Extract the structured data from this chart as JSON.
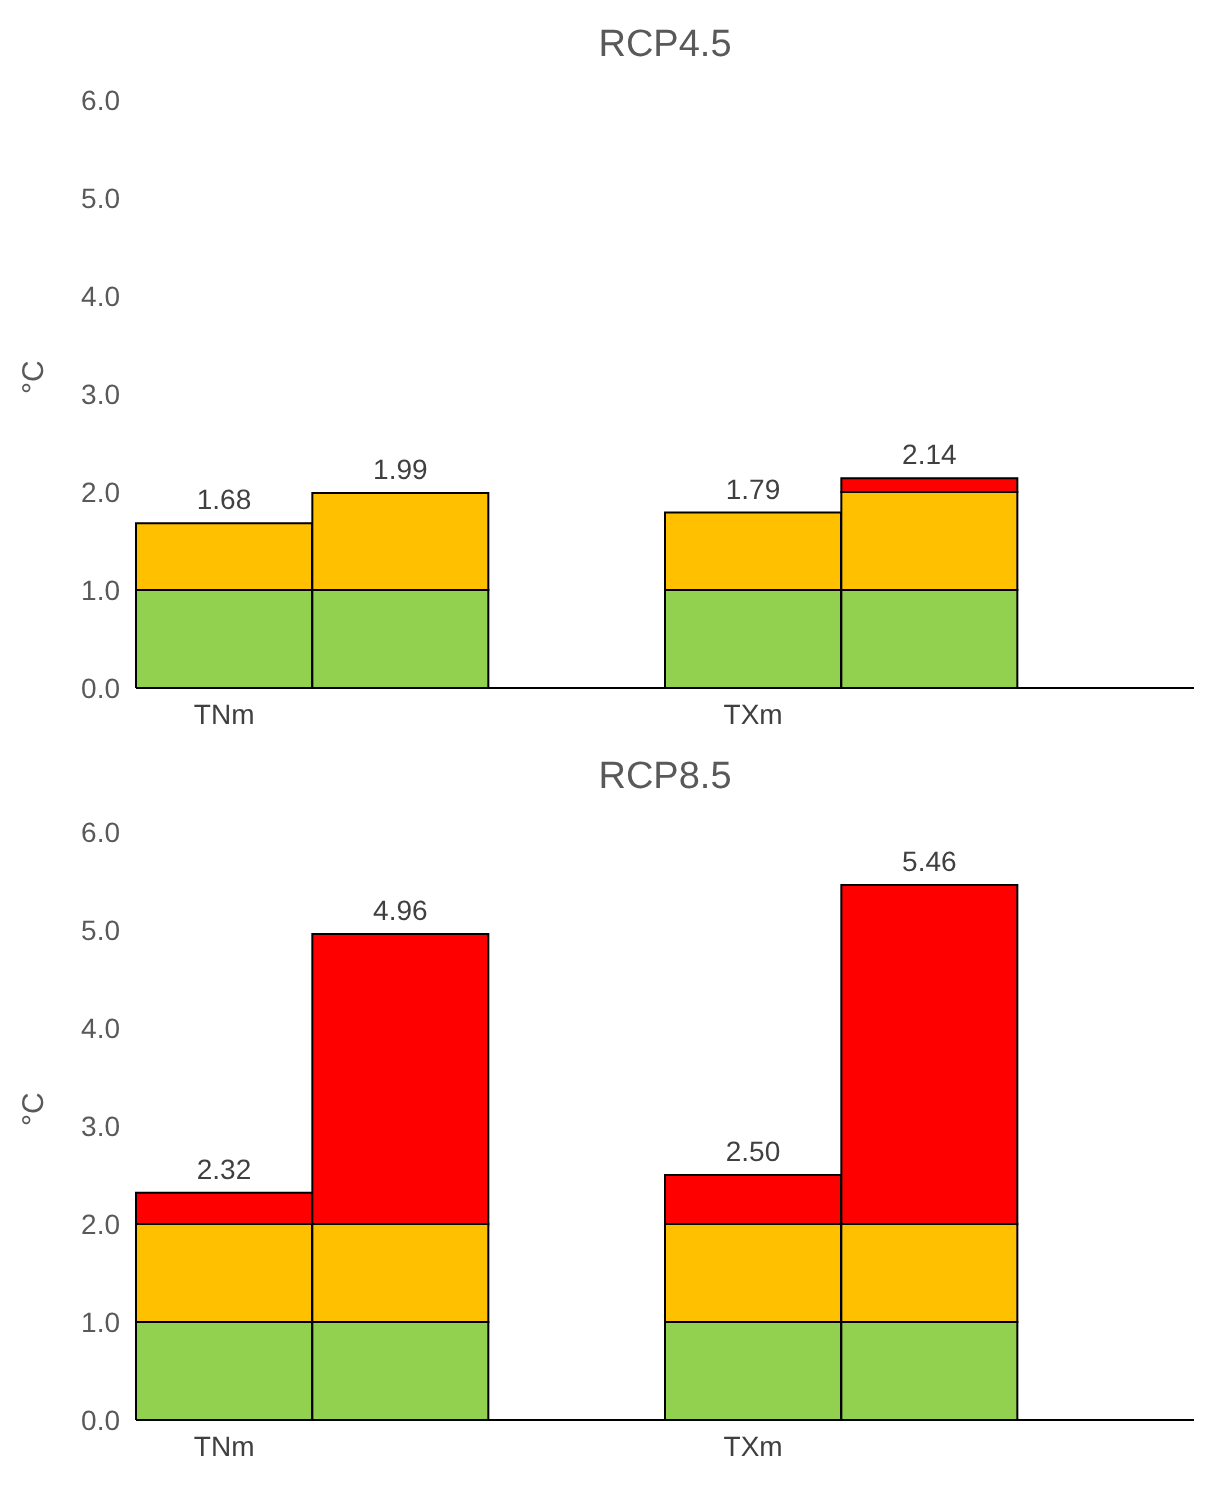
{
  "chart_data": [
    {
      "type": "bar",
      "title": "RCP4.5",
      "ylabel": "°C",
      "stacked": true,
      "categories": [
        "TNm",
        null,
        null,
        "TXm",
        null,
        null
      ],
      "ylim": [
        0,
        6
      ],
      "yticks": [
        {
          "value": 0,
          "label": "0.0"
        },
        {
          "value": 1,
          "label": "1.0"
        },
        {
          "value": 2,
          "label": "2.0"
        },
        {
          "value": 3,
          "label": "3.0"
        },
        {
          "value": 4,
          "label": "4.0"
        },
        {
          "value": 5,
          "label": "5.0"
        },
        {
          "value": 6,
          "label": "6.0"
        }
      ],
      "grid": false,
      "legend": false,
      "totals": [
        "1.68",
        "1.99",
        null,
        "1.79",
        "2.14",
        null
      ],
      "series": [
        {
          "color": "#92d050",
          "values": [
            1,
            1,
            null,
            1,
            1,
            null
          ]
        },
        {
          "color": "#ffc000",
          "values": [
            0.68,
            0.99,
            null,
            0.79,
            1,
            null
          ]
        },
        {
          "color": "#ff0000",
          "values": [
            null,
            null,
            null,
            null,
            0.14,
            null
          ]
        }
      ]
    },
    {
      "type": "bar",
      "title": "RCP8.5",
      "ylabel": "°C",
      "stacked": true,
      "categories": [
        "TNm",
        null,
        null,
        "TXm",
        null,
        null
      ],
      "ylim": [
        0,
        6
      ],
      "yticks": [
        {
          "value": 0,
          "label": "0.0"
        },
        {
          "value": 1,
          "label": "1.0"
        },
        {
          "value": 2,
          "label": "2.0"
        },
        {
          "value": 3,
          "label": "3.0"
        },
        {
          "value": 4,
          "label": "4.0"
        },
        {
          "value": 5,
          "label": "5.0"
        },
        {
          "value": 6,
          "label": "6.0"
        }
      ],
      "grid": false,
      "legend": false,
      "totals": [
        "2.32",
        "4.96",
        null,
        "2.50",
        "5.46",
        null
      ],
      "series": [
        {
          "color": "#92d050",
          "values": [
            1,
            1,
            null,
            1,
            1,
            null
          ]
        },
        {
          "color": "#ffc000",
          "values": [
            1,
            1,
            null,
            1,
            1,
            null
          ]
        },
        {
          "color": "#ff0000",
          "values": [
            0.32,
            2.96,
            null,
            0.5,
            3.46,
            null
          ]
        }
      ]
    }
  ]
}
